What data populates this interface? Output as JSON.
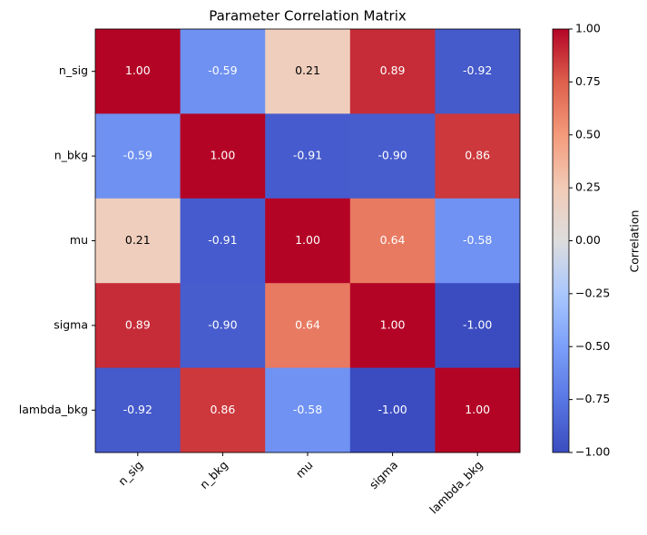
{
  "chart_data": {
    "type": "heatmap",
    "title": "Parameter Correlation Matrix",
    "x_categories": [
      "n_sig",
      "n_bkg",
      "mu",
      "sigma",
      "lambda_bkg"
    ],
    "y_categories": [
      "n_sig",
      "n_bkg",
      "mu",
      "sigma",
      "lambda_bkg"
    ],
    "values": [
      [
        1.0,
        -0.59,
        0.21,
        0.89,
        -0.92
      ],
      [
        -0.59,
        1.0,
        -0.91,
        -0.9,
        0.86
      ],
      [
        0.21,
        -0.91,
        1.0,
        0.64,
        -0.58
      ],
      [
        0.89,
        -0.9,
        0.64,
        1.0,
        -1.0
      ],
      [
        -0.92,
        0.86,
        -0.58,
        -1.0,
        1.0
      ]
    ],
    "value_labels": [
      [
        "1.00",
        "-0.59",
        "0.21",
        "0.89",
        "-0.92"
      ],
      [
        "-0.59",
        "1.00",
        "-0.91",
        "-0.90",
        "0.86"
      ],
      [
        "0.21",
        "-0.91",
        "1.00",
        "0.64",
        "-0.58"
      ],
      [
        "0.89",
        "-0.90",
        "0.64",
        "1.00",
        "-1.00"
      ],
      [
        "-0.92",
        "0.86",
        "-0.58",
        "-1.00",
        "1.00"
      ]
    ],
    "colormap": "coolwarm",
    "colorbar": {
      "label": "Correlation",
      "lim": [
        -1,
        1
      ],
      "ticks": [
        {
          "value": 1,
          "label": "1.00"
        },
        {
          "value": 0.75,
          "label": "0.75"
        },
        {
          "value": 0.5,
          "label": "0.50"
        },
        {
          "value": 0.25,
          "label": "0.25"
        },
        {
          "value": 0,
          "label": "0.00"
        },
        {
          "value": -0.25,
          "label": "−0.25"
        },
        {
          "value": -0.5,
          "label": "−0.50"
        },
        {
          "value": -0.75,
          "label": "−0.75"
        },
        {
          "value": -1,
          "label": "−1.00"
        }
      ]
    }
  }
}
